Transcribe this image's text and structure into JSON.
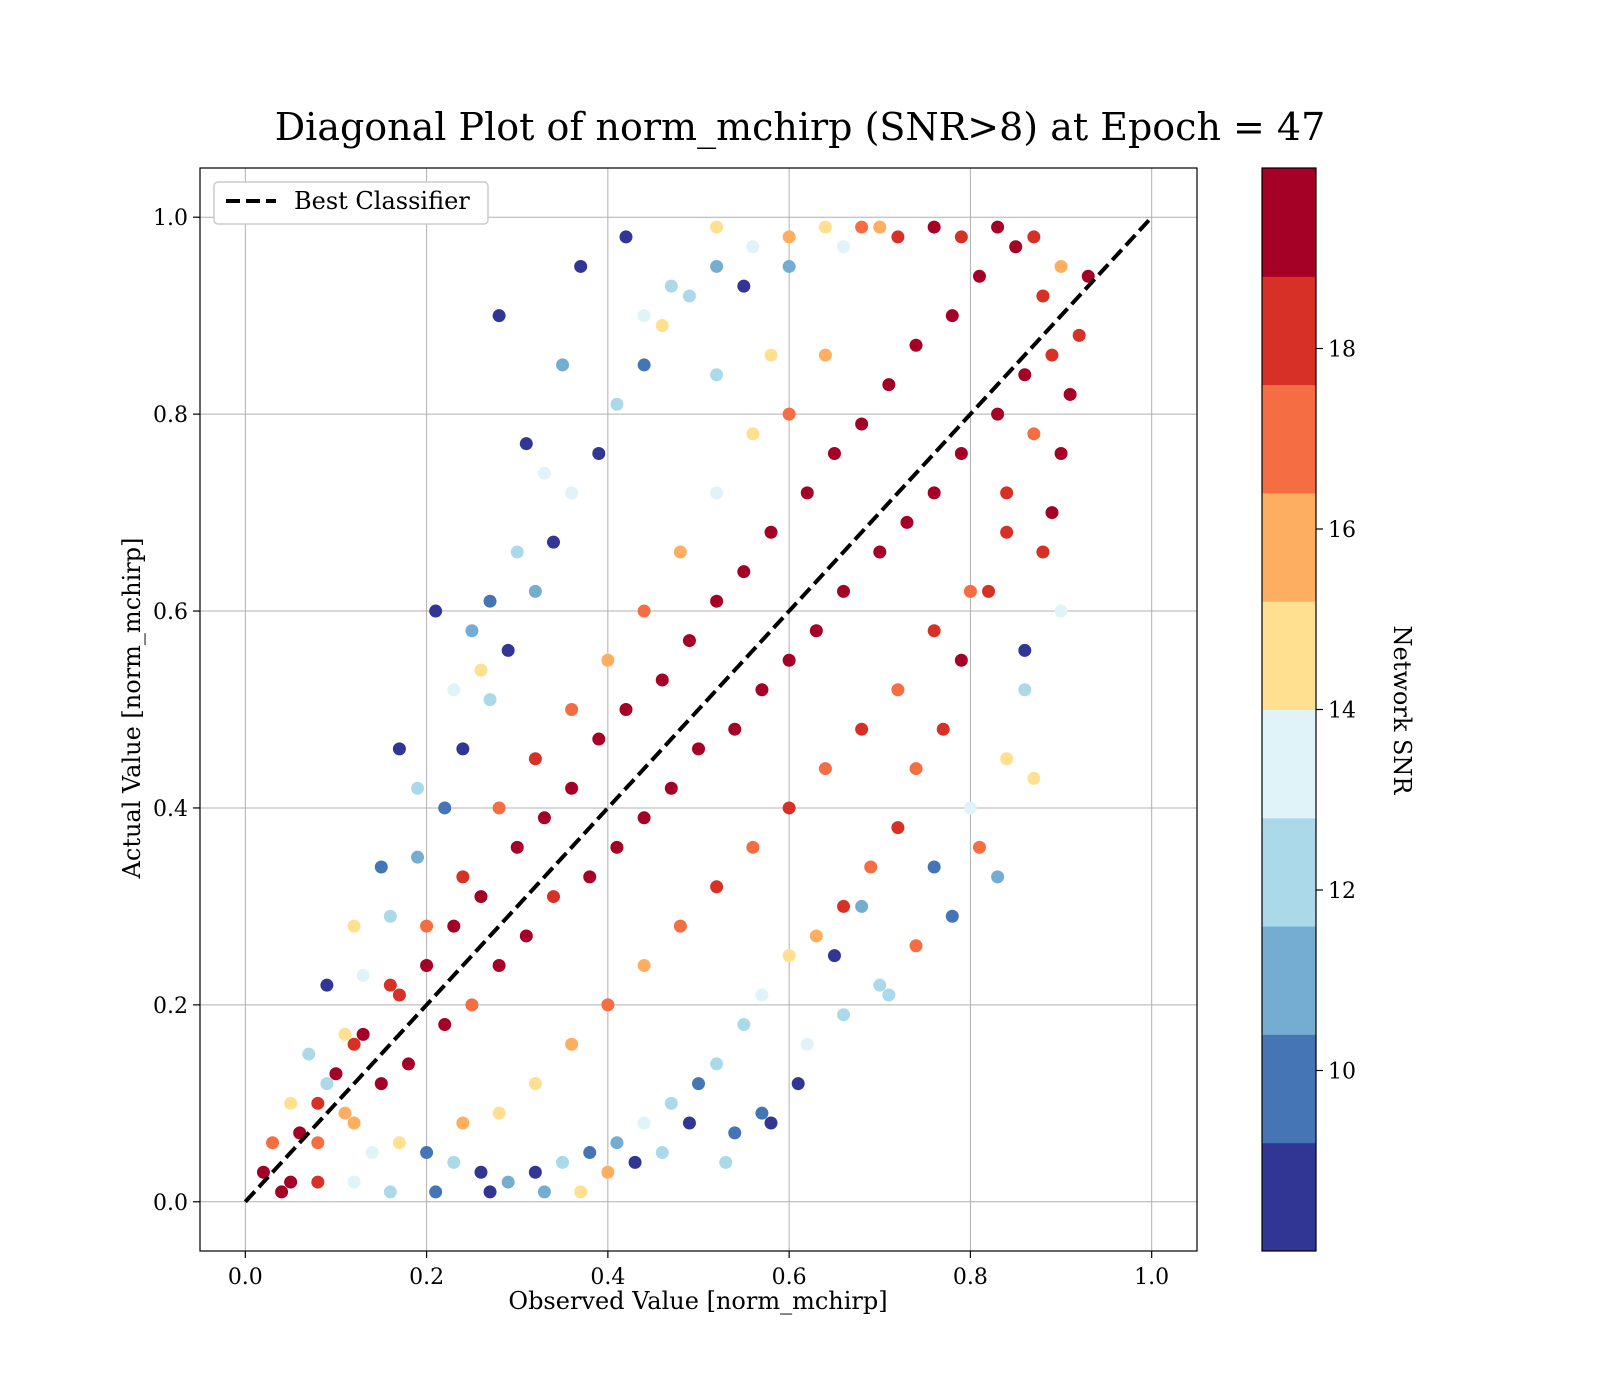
{
  "chart_data": {
    "type": "scatter",
    "title": "Diagonal Plot of norm_mchirp (SNR>8) at Epoch = 47",
    "xlabel": "Observed Value [norm_mchirp]",
    "ylabel": "Actual Value [norm_mchirp]",
    "xlim": [
      -0.05,
      1.05
    ],
    "ylim": [
      -0.05,
      1.05
    ],
    "x_ticks": [
      "0.0",
      "0.2",
      "0.4",
      "0.6",
      "0.8",
      "1.0"
    ],
    "y_ticks": [
      "0.0",
      "0.2",
      "0.4",
      "0.6",
      "0.8",
      "1.0"
    ],
    "grid": true,
    "legend": {
      "position": "upper-left",
      "entries": [
        {
          "label": "Best Classifier",
          "style": "dashed",
          "color": "#000000"
        }
      ]
    },
    "reference_line": {
      "name": "Best Classifier",
      "x": [
        0.0,
        1.0
      ],
      "y": [
        0.0,
        1.0
      ],
      "style": "dashed",
      "color": "#000000"
    },
    "series": [
      {
        "color_value_label": "Network SNR",
        "points": [
          [
            0.02,
            0.03,
            19
          ],
          [
            0.05,
            0.02,
            19
          ],
          [
            0.06,
            0.07,
            19
          ],
          [
            0.08,
            0.06,
            17
          ],
          [
            0.1,
            0.13,
            19
          ],
          [
            0.12,
            0.08,
            16
          ],
          [
            0.13,
            0.17,
            19
          ],
          [
            0.15,
            0.12,
            19
          ],
          [
            0.17,
            0.21,
            18
          ],
          [
            0.18,
            0.14,
            19
          ],
          [
            0.2,
            0.24,
            19
          ],
          [
            0.22,
            0.18,
            19
          ],
          [
            0.23,
            0.28,
            19
          ],
          [
            0.25,
            0.2,
            17
          ],
          [
            0.26,
            0.31,
            19
          ],
          [
            0.28,
            0.24,
            19
          ],
          [
            0.3,
            0.36,
            19
          ],
          [
            0.31,
            0.27,
            19
          ],
          [
            0.33,
            0.39,
            19
          ],
          [
            0.34,
            0.31,
            18
          ],
          [
            0.36,
            0.42,
            19
          ],
          [
            0.38,
            0.33,
            19
          ],
          [
            0.39,
            0.47,
            19
          ],
          [
            0.41,
            0.36,
            19
          ],
          [
            0.42,
            0.5,
            19
          ],
          [
            0.44,
            0.39,
            19
          ],
          [
            0.46,
            0.53,
            19
          ],
          [
            0.47,
            0.42,
            19
          ],
          [
            0.49,
            0.57,
            19
          ],
          [
            0.5,
            0.46,
            19
          ],
          [
            0.52,
            0.61,
            19
          ],
          [
            0.54,
            0.48,
            19
          ],
          [
            0.55,
            0.64,
            19
          ],
          [
            0.57,
            0.52,
            19
          ],
          [
            0.58,
            0.68,
            19
          ],
          [
            0.6,
            0.55,
            19
          ],
          [
            0.62,
            0.72,
            19
          ],
          [
            0.63,
            0.58,
            19
          ],
          [
            0.65,
            0.76,
            19
          ],
          [
            0.66,
            0.62,
            19
          ],
          [
            0.68,
            0.79,
            19
          ],
          [
            0.7,
            0.66,
            19
          ],
          [
            0.71,
            0.83,
            19
          ],
          [
            0.73,
            0.69,
            19
          ],
          [
            0.74,
            0.87,
            19
          ],
          [
            0.76,
            0.72,
            19
          ],
          [
            0.78,
            0.9,
            19
          ],
          [
            0.79,
            0.76,
            19
          ],
          [
            0.81,
            0.94,
            19
          ],
          [
            0.83,
            0.8,
            19
          ],
          [
            0.85,
            0.97,
            19
          ],
          [
            0.86,
            0.84,
            19
          ],
          [
            0.88,
            0.92,
            18
          ],
          [
            0.89,
            0.86,
            18
          ],
          [
            0.9,
            0.95,
            16
          ],
          [
            0.87,
            0.78,
            17
          ],
          [
            0.84,
            0.72,
            18
          ],
          [
            0.82,
            0.62,
            18
          ],
          [
            0.79,
            0.55,
            19
          ],
          [
            0.77,
            0.48,
            18
          ],
          [
            0.74,
            0.44,
            17
          ],
          [
            0.72,
            0.38,
            18
          ],
          [
            0.69,
            0.34,
            17
          ],
          [
            0.66,
            0.3,
            18
          ],
          [
            0.63,
            0.27,
            16
          ],
          [
            0.6,
            0.25,
            15
          ],
          [
            0.57,
            0.21,
            13
          ],
          [
            0.55,
            0.18,
            12
          ],
          [
            0.52,
            0.14,
            12
          ],
          [
            0.5,
            0.12,
            10
          ],
          [
            0.47,
            0.1,
            12
          ],
          [
            0.44,
            0.08,
            13
          ],
          [
            0.41,
            0.06,
            11
          ],
          [
            0.38,
            0.05,
            10
          ],
          [
            0.35,
            0.04,
            12
          ],
          [
            0.32,
            0.03,
            9
          ],
          [
            0.29,
            0.02,
            11
          ],
          [
            0.26,
            0.03,
            8
          ],
          [
            0.23,
            0.04,
            12
          ],
          [
            0.2,
            0.05,
            10
          ],
          [
            0.17,
            0.06,
            14
          ],
          [
            0.14,
            0.05,
            13
          ],
          [
            0.11,
            0.09,
            16
          ],
          [
            0.09,
            0.12,
            12
          ],
          [
            0.11,
            0.17,
            14
          ],
          [
            0.13,
            0.23,
            13
          ],
          [
            0.16,
            0.29,
            12
          ],
          [
            0.19,
            0.35,
            11
          ],
          [
            0.22,
            0.4,
            10
          ],
          [
            0.24,
            0.46,
            8
          ],
          [
            0.27,
            0.51,
            12
          ],
          [
            0.29,
            0.56,
            9
          ],
          [
            0.32,
            0.62,
            11
          ],
          [
            0.34,
            0.67,
            8
          ],
          [
            0.36,
            0.72,
            13
          ],
          [
            0.39,
            0.76,
            9
          ],
          [
            0.41,
            0.81,
            12
          ],
          [
            0.44,
            0.85,
            10
          ],
          [
            0.46,
            0.89,
            14
          ],
          [
            0.49,
            0.92,
            12
          ],
          [
            0.52,
            0.95,
            11
          ],
          [
            0.56,
            0.97,
            13
          ],
          [
            0.6,
            0.98,
            16
          ],
          [
            0.64,
            0.99,
            15
          ],
          [
            0.68,
            0.99,
            17
          ],
          [
            0.72,
            0.98,
            18
          ],
          [
            0.76,
            0.99,
            19
          ],
          [
            0.28,
            0.9,
            8
          ],
          [
            0.21,
            0.6,
            8
          ],
          [
            0.17,
            0.46,
            9
          ],
          [
            0.31,
            0.77,
            8
          ],
          [
            0.37,
            0.95,
            8
          ],
          [
            0.42,
            0.98,
            8
          ],
          [
            0.58,
            0.08,
            8
          ],
          [
            0.61,
            0.12,
            9
          ],
          [
            0.54,
            0.07,
            10
          ],
          [
            0.49,
            0.08,
            8
          ],
          [
            0.81,
            0.36,
            17
          ],
          [
            0.74,
            0.26,
            17
          ],
          [
            0.7,
            0.22,
            12
          ],
          [
            0.65,
            0.25,
            9
          ],
          [
            0.68,
            0.3,
            11
          ],
          [
            0.76,
            0.34,
            10
          ],
          [
            0.8,
            0.4,
            13
          ],
          [
            0.84,
            0.45,
            14
          ],
          [
            0.86,
            0.52,
            12
          ],
          [
            0.86,
            0.56,
            9
          ],
          [
            0.88,
            0.66,
            18
          ],
          [
            0.89,
            0.7,
            19
          ],
          [
            0.9,
            0.76,
            19
          ],
          [
            0.91,
            0.82,
            19
          ],
          [
            0.92,
            0.88,
            18
          ],
          [
            0.93,
            0.94,
            19
          ],
          [
            0.52,
            0.99,
            14
          ],
          [
            0.25,
            0.58,
            11
          ],
          [
            0.23,
            0.52,
            13
          ],
          [
            0.19,
            0.42,
            12
          ],
          [
            0.15,
            0.34,
            10
          ],
          [
            0.12,
            0.28,
            14
          ],
          [
            0.09,
            0.22,
            9
          ],
          [
            0.07,
            0.15,
            12
          ],
          [
            0.05,
            0.1,
            15
          ],
          [
            0.03,
            0.06,
            17
          ],
          [
            0.04,
            0.01,
            19
          ],
          [
            0.08,
            0.02,
            18
          ],
          [
            0.12,
            0.02,
            13
          ],
          [
            0.16,
            0.01,
            12
          ],
          [
            0.21,
            0.01,
            10
          ],
          [
            0.27,
            0.01,
            9
          ],
          [
            0.33,
            0.01,
            11
          ],
          [
            0.37,
            0.01,
            14
          ],
          [
            0.4,
            0.03,
            16
          ],
          [
            0.43,
            0.04,
            8
          ],
          [
            0.46,
            0.05,
            12
          ],
          [
            0.53,
            0.04,
            12
          ],
          [
            0.57,
            0.09,
            10
          ],
          [
            0.62,
            0.16,
            13
          ],
          [
            0.66,
            0.19,
            12
          ],
          [
            0.71,
            0.21,
            12
          ],
          [
            0.78,
            0.29,
            10
          ],
          [
            0.83,
            0.33,
            11
          ],
          [
            0.87,
            0.43,
            15
          ],
          [
            0.9,
            0.6,
            13
          ],
          [
            0.35,
            0.85,
            11
          ],
          [
            0.33,
            0.74,
            13
          ],
          [
            0.3,
            0.66,
            12
          ],
          [
            0.27,
            0.61,
            10
          ],
          [
            0.26,
            0.54,
            14
          ],
          [
            0.44,
            0.9,
            13
          ],
          [
            0.47,
            0.93,
            12
          ],
          [
            0.55,
            0.93,
            9
          ],
          [
            0.6,
            0.95,
            11
          ],
          [
            0.66,
            0.97,
            13
          ],
          [
            0.7,
            0.99,
            16
          ],
          [
            0.79,
            0.98,
            18
          ],
          [
            0.83,
            0.99,
            19
          ],
          [
            0.87,
            0.98,
            18
          ],
          [
            0.56,
            0.78,
            15
          ],
          [
            0.52,
            0.72,
            13
          ],
          [
            0.48,
            0.66,
            16
          ],
          [
            0.44,
            0.6,
            17
          ],
          [
            0.4,
            0.55,
            16
          ],
          [
            0.36,
            0.5,
            17
          ],
          [
            0.32,
            0.45,
            18
          ],
          [
            0.28,
            0.4,
            17
          ],
          [
            0.24,
            0.33,
            18
          ],
          [
            0.2,
            0.28,
            17
          ],
          [
            0.16,
            0.22,
            18
          ],
          [
            0.12,
            0.16,
            18
          ],
          [
            0.08,
            0.1,
            18
          ],
          [
            0.6,
            0.4,
            18
          ],
          [
            0.64,
            0.44,
            17
          ],
          [
            0.68,
            0.48,
            18
          ],
          [
            0.72,
            0.52,
            17
          ],
          [
            0.76,
            0.58,
            18
          ],
          [
            0.8,
            0.62,
            17
          ],
          [
            0.84,
            0.68,
            18
          ],
          [
            0.56,
            0.36,
            17
          ],
          [
            0.52,
            0.32,
            18
          ],
          [
            0.48,
            0.28,
            17
          ],
          [
            0.44,
            0.24,
            16
          ],
          [
            0.4,
            0.2,
            17
          ],
          [
            0.36,
            0.16,
            16
          ],
          [
            0.32,
            0.12,
            15
          ],
          [
            0.28,
            0.09,
            14
          ],
          [
            0.24,
            0.08,
            16
          ],
          [
            0.6,
            0.8,
            17
          ],
          [
            0.64,
            0.86,
            16
          ],
          [
            0.58,
            0.86,
            14
          ],
          [
            0.52,
            0.84,
            12
          ]
        ]
      }
    ],
    "colorbar": {
      "label": "Network SNR",
      "ticks": [
        "10",
        "12",
        "14",
        "16",
        "18"
      ],
      "tick_values": [
        10,
        12,
        14,
        16,
        18
      ],
      "range": [
        8,
        20
      ],
      "colors": [
        "#313695",
        "#4575b4",
        "#74add1",
        "#abd9e9",
        "#e0f3f8",
        "#fee090",
        "#fdae61",
        "#f46d43",
        "#d73027",
        "#a50026"
      ]
    }
  }
}
